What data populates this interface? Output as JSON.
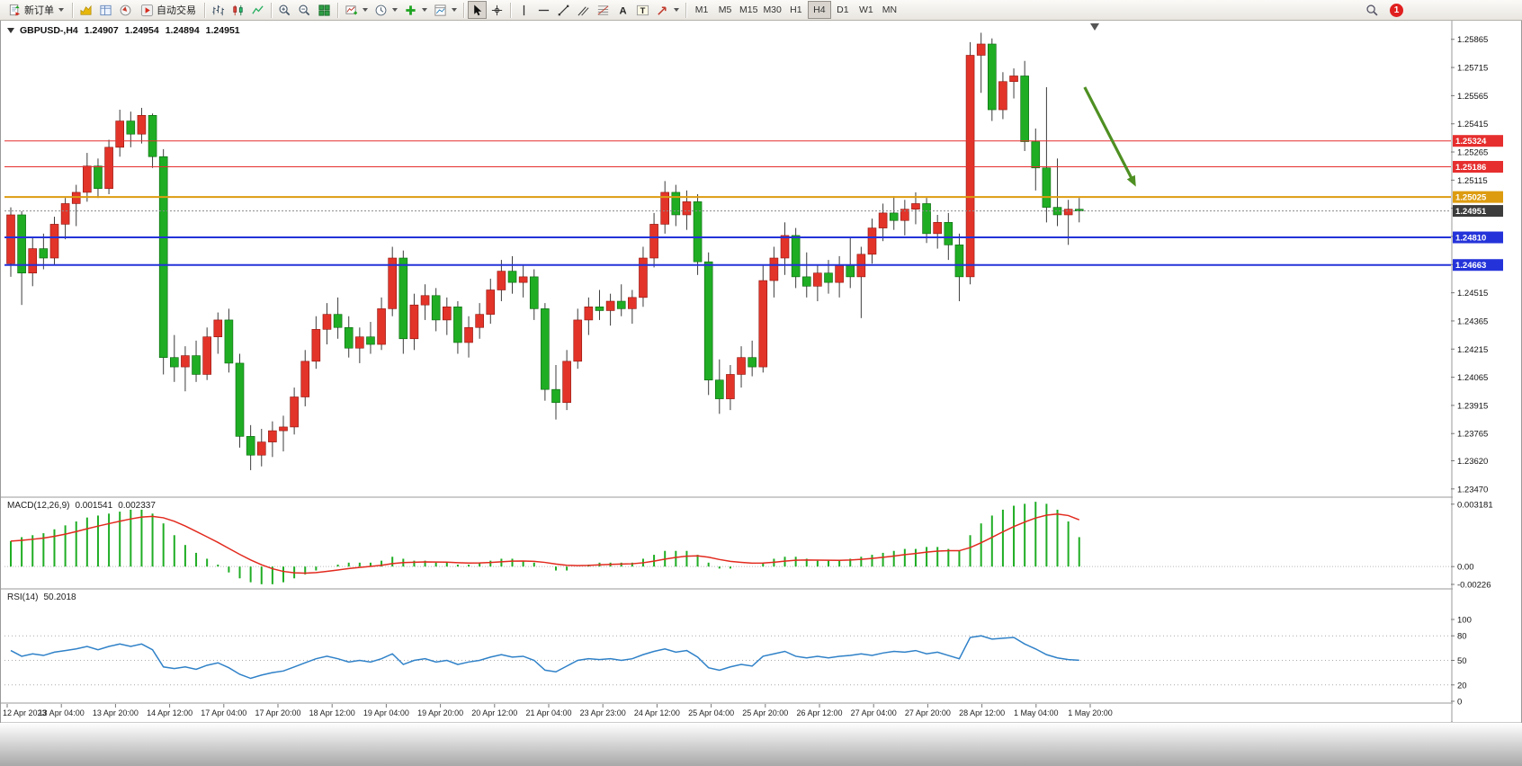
{
  "toolbar": {
    "new_order_label": "新订单",
    "autotrading_label": "自动交易",
    "timeframes": [
      "M1",
      "M5",
      "M15",
      "M30",
      "H1",
      "H4",
      "D1",
      "W1",
      "MN"
    ],
    "active_timeframe": "H4",
    "notification_count": "1"
  },
  "chart_data": {
    "type": "candlestick",
    "title": "GBPUSD-,H4",
    "ohlc": {
      "open": "1.24907",
      "high": "1.24954",
      "low": "1.24894",
      "close": "1.24951"
    },
    "bull_color": "#e3342a",
    "bear_color": "#1fad24",
    "wick_color": "#3c3c3c",
    "price_axis": {
      "min": 1.2345,
      "max": 1.2595,
      "labels": [
        "1.25865",
        "1.25715",
        "1.25565",
        "1.25415",
        "1.25265",
        "1.25115",
        "1.24965",
        "1.24815",
        "1.24665",
        "1.24515",
        "1.24365",
        "1.24215",
        "1.24065",
        "1.23915",
        "1.23765",
        "1.23620",
        "1.23470"
      ]
    },
    "hlines": [
      {
        "price": 1.25324,
        "label": "1.25324",
        "color": "#e62e2e",
        "width": 1
      },
      {
        "price": 1.25186,
        "label": "1.25186",
        "color": "#e62e2e",
        "width": 1
      },
      {
        "price": 1.25025,
        "label": "1.25025",
        "color": "#dd9c10",
        "width": 2
      },
      {
        "price": 1.2481,
        "label": "1.24810",
        "color": "#2433d9",
        "width": 2
      },
      {
        "price": 1.24663,
        "label": "1.24663",
        "color": "#2433d9",
        "width": 2
      }
    ],
    "bid_line": {
      "price": 1.24951,
      "label": "1.24951",
      "color": "#3c3c3c"
    },
    "arrow": {
      "bar_start": 98.5,
      "price_start": 1.2561,
      "bar_end": 103.2,
      "price_end": 1.2508,
      "color": "#4e8f22"
    },
    "candles": [
      [
        1.2467,
        1.2497,
        1.246,
        1.2493
      ],
      [
        1.2493,
        1.2495,
        1.2445,
        1.2462
      ],
      [
        1.2462,
        1.2481,
        1.2455,
        1.2475
      ],
      [
        1.2475,
        1.2483,
        1.2464,
        1.247
      ],
      [
        1.247,
        1.2492,
        1.2466,
        1.2488
      ],
      [
        1.2488,
        1.2502,
        1.248,
        1.2499
      ],
      [
        1.2499,
        1.2509,
        1.2487,
        1.2505
      ],
      [
        1.2505,
        1.2526,
        1.25,
        1.2519
      ],
      [
        1.2519,
        1.2523,
        1.2502,
        1.2507
      ],
      [
        1.2507,
        1.2533,
        1.2504,
        1.2529
      ],
      [
        1.2529,
        1.2549,
        1.2524,
        1.2543
      ],
      [
        1.2543,
        1.2548,
        1.2529,
        1.2536
      ],
      [
        1.2536,
        1.255,
        1.2531,
        1.2546
      ],
      [
        1.2546,
        1.2547,
        1.2518,
        1.2524
      ],
      [
        1.2524,
        1.2528,
        1.2408,
        1.2417
      ],
      [
        1.2417,
        1.2429,
        1.2404,
        1.2412
      ],
      [
        1.2412,
        1.2423,
        1.2399,
        1.2418
      ],
      [
        1.2418,
        1.2426,
        1.2404,
        1.2408
      ],
      [
        1.2408,
        1.2433,
        1.2405,
        1.2428
      ],
      [
        1.2428,
        1.2441,
        1.2419,
        1.2437
      ],
      [
        1.2437,
        1.2443,
        1.2409,
        1.2414
      ],
      [
        1.2414,
        1.2419,
        1.2369,
        1.2375
      ],
      [
        1.2375,
        1.2381,
        1.2357,
        1.2365
      ],
      [
        1.2365,
        1.2379,
        1.2359,
        1.2372
      ],
      [
        1.2372,
        1.2383,
        1.2364,
        1.2378
      ],
      [
        1.2378,
        1.2386,
        1.2367,
        1.238
      ],
      [
        1.238,
        1.2401,
        1.2376,
        1.2396
      ],
      [
        1.2396,
        1.2421,
        1.2391,
        1.2415
      ],
      [
        1.2415,
        1.2439,
        1.2411,
        1.2432
      ],
      [
        1.2432,
        1.2446,
        1.2424,
        1.244
      ],
      [
        1.244,
        1.2449,
        1.2427,
        1.2433
      ],
      [
        1.2433,
        1.2439,
        1.2417,
        1.2422
      ],
      [
        1.2422,
        1.2433,
        1.2414,
        1.2428
      ],
      [
        1.2428,
        1.2436,
        1.2419,
        1.2424
      ],
      [
        1.2424,
        1.2449,
        1.2421,
        1.2443
      ],
      [
        1.2443,
        1.2476,
        1.2439,
        1.247
      ],
      [
        1.247,
        1.2474,
        1.2419,
        1.2427
      ],
      [
        1.2427,
        1.2451,
        1.2421,
        1.2445
      ],
      [
        1.2445,
        1.2456,
        1.2437,
        1.245
      ],
      [
        1.245,
        1.2454,
        1.2431,
        1.2437
      ],
      [
        1.2437,
        1.2449,
        1.2429,
        1.2444
      ],
      [
        1.2444,
        1.2447,
        1.2419,
        1.2425
      ],
      [
        1.2425,
        1.2439,
        1.2417,
        1.2433
      ],
      [
        1.2433,
        1.2446,
        1.2427,
        1.244
      ],
      [
        1.244,
        1.2459,
        1.2435,
        1.2453
      ],
      [
        1.2453,
        1.2469,
        1.2447,
        1.2463
      ],
      [
        1.2463,
        1.2471,
        1.2451,
        1.2457
      ],
      [
        1.2457,
        1.2466,
        1.2449,
        1.246
      ],
      [
        1.246,
        1.2464,
        1.2437,
        1.2443
      ],
      [
        1.2443,
        1.2446,
        1.2394,
        1.24
      ],
      [
        1.24,
        1.2413,
        1.2384,
        1.2393
      ],
      [
        1.2393,
        1.2421,
        1.2389,
        1.2415
      ],
      [
        1.2415,
        1.2443,
        1.2411,
        1.2437
      ],
      [
        1.2437,
        1.2449,
        1.2429,
        1.2444
      ],
      [
        1.2444,
        1.2453,
        1.2437,
        1.2442
      ],
      [
        1.2442,
        1.2451,
        1.2434,
        1.2447
      ],
      [
        1.2447,
        1.2456,
        1.2439,
        1.2443
      ],
      [
        1.2443,
        1.2453,
        1.2435,
        1.2449
      ],
      [
        1.2449,
        1.2476,
        1.2444,
        1.247
      ],
      [
        1.247,
        1.2494,
        1.2465,
        1.2488
      ],
      [
        1.2488,
        1.2511,
        1.2483,
        1.2505
      ],
      [
        1.2505,
        1.2509,
        1.2487,
        1.2493
      ],
      [
        1.2493,
        1.2506,
        1.2485,
        1.25
      ],
      [
        1.25,
        1.2504,
        1.2461,
        1.2468
      ],
      [
        1.2468,
        1.2473,
        1.2397,
        1.2405
      ],
      [
        1.2405,
        1.2416,
        1.2387,
        1.2395
      ],
      [
        1.2395,
        1.2413,
        1.2389,
        1.2408
      ],
      [
        1.2408,
        1.2423,
        1.2401,
        1.2417
      ],
      [
        1.2417,
        1.2426,
        1.2407,
        1.2412
      ],
      [
        1.2412,
        1.2466,
        1.2409,
        1.2458
      ],
      [
        1.2458,
        1.2476,
        1.2449,
        1.247
      ],
      [
        1.247,
        1.2489,
        1.2461,
        1.2482
      ],
      [
        1.2482,
        1.2486,
        1.2454,
        1.246
      ],
      [
        1.246,
        1.2473,
        1.2449,
        1.2455
      ],
      [
        1.2455,
        1.2466,
        1.2447,
        1.2462
      ],
      [
        1.2462,
        1.2469,
        1.2451,
        1.2457
      ],
      [
        1.2457,
        1.2471,
        1.2449,
        1.2466
      ],
      [
        1.2466,
        1.2481,
        1.2454,
        1.246
      ],
      [
        1.246,
        1.2476,
        1.2438,
        1.2472
      ],
      [
        1.2472,
        1.2491,
        1.2467,
        1.2486
      ],
      [
        1.2486,
        1.2499,
        1.2479,
        1.2494
      ],
      [
        1.2494,
        1.2503,
        1.2485,
        1.249
      ],
      [
        1.249,
        1.2501,
        1.2482,
        1.2496
      ],
      [
        1.2496,
        1.2505,
        1.2488,
        1.2499
      ],
      [
        1.2499,
        1.2502,
        1.2478,
        1.2483
      ],
      [
        1.2483,
        1.2493,
        1.2475,
        1.2489
      ],
      [
        1.2489,
        1.2494,
        1.2469,
        1.2477
      ],
      [
        1.2477,
        1.2483,
        1.2447,
        1.246
      ],
      [
        1.246,
        1.2585,
        1.2456,
        1.2578
      ],
      [
        1.2578,
        1.259,
        1.2558,
        1.2584
      ],
      [
        1.2584,
        1.2587,
        1.2543,
        1.2549
      ],
      [
        1.2549,
        1.2569,
        1.2544,
        1.2564
      ],
      [
        1.2564,
        1.2571,
        1.2555,
        1.2567
      ],
      [
        1.2567,
        1.2575,
        1.2527,
        1.2532
      ],
      [
        1.2532,
        1.2539,
        1.2506,
        1.2518
      ],
      [
        1.2518,
        1.2561,
        1.2489,
        1.2497
      ],
      [
        1.2497,
        1.2523,
        1.2487,
        1.2493
      ],
      [
        1.2493,
        1.2501,
        1.2477,
        1.2496
      ],
      [
        1.2496,
        1.2502,
        1.2489,
        1.24951
      ]
    ],
    "time_axis": [
      "12 Apr 2023",
      "13 Apr 04:00",
      "13 Apr 20:00",
      "14 Apr 12:00",
      "17 Apr 04:00",
      "17 Apr 20:00",
      "18 Apr 12:00",
      "19 Apr 04:00",
      "19 Apr 20:00",
      "20 Apr 12:00",
      "21 Apr 04:00",
      "23 Apr 23:00",
      "24 Apr 12:00",
      "25 Apr 04:00",
      "25 Apr 20:00",
      "26 Apr 12:00",
      "27 Apr 04:00",
      "27 Apr 20:00",
      "28 Apr 12:00",
      "1 May 04:00",
      "1 May 20:00"
    ],
    "indicators": {
      "macd": {
        "label": "MACD(12,26,9)",
        "value_main": "0.001541",
        "value_signal": "0.002337",
        "axis_labels": [
          "0.003181",
          "0.00",
          "-0.00226"
        ],
        "scale_max": 0.0034,
        "scale_min": -0.001,
        "histogram_color": "#1fad24",
        "signal_color": "#e22a1e",
        "histogram": [
          0.0013,
          0.0015,
          0.0016,
          0.0017,
          0.0019,
          0.0021,
          0.0023,
          0.0025,
          0.0026,
          0.0027,
          0.0028,
          0.0029,
          0.0029,
          0.0027,
          0.0022,
          0.0016,
          0.0011,
          0.0007,
          0.0004,
          0.0001,
          -0.0003,
          -0.0006,
          -0.0008,
          -0.0009,
          -0.0009,
          -0.0008,
          -0.0006,
          -0.0004,
          -0.0002,
          0.0,
          0.0001,
          0.0002,
          0.0002,
          0.0002,
          0.0003,
          0.0005,
          0.0004,
          0.0003,
          0.0003,
          0.0002,
          0.0002,
          0.0001,
          0.0001,
          0.0002,
          0.0003,
          0.0004,
          0.0004,
          0.0003,
          0.0002,
          0.0,
          -0.0002,
          -0.0002,
          0.0,
          0.0001,
          0.0002,
          0.0002,
          0.0002,
          0.0002,
          0.0004,
          0.0006,
          0.0008,
          0.0008,
          0.0008,
          0.0006,
          0.0002,
          -0.0001,
          -0.0001,
          0.0,
          0.0,
          0.0002,
          0.0004,
          0.0005,
          0.0005,
          0.0004,
          0.0003,
          0.0003,
          0.0003,
          0.0004,
          0.0005,
          0.0006,
          0.0007,
          0.0008,
          0.0009,
          0.0009,
          0.001,
          0.001,
          0.0009,
          0.0008,
          0.0016,
          0.0022,
          0.0026,
          0.0029,
          0.0031,
          0.0032,
          0.0033,
          0.0032,
          0.0029,
          0.0023,
          0.0015
        ]
      },
      "rsi": {
        "label": "RSI(14)",
        "value": "50.2018",
        "color": "#2f81c8",
        "levels": [
          80,
          50,
          20
        ],
        "axis_labels": [
          "100",
          "80",
          "50",
          "20",
          "0"
        ],
        "values": [
          62,
          55,
          58,
          56,
          60,
          62,
          64,
          67,
          63,
          67,
          70,
          67,
          70,
          63,
          42,
          40,
          42,
          39,
          44,
          47,
          41,
          33,
          28,
          32,
          35,
          37,
          42,
          47,
          52,
          55,
          52,
          48,
          50,
          48,
          52,
          58,
          45,
          50,
          52,
          48,
          50,
          45,
          48,
          50,
          54,
          57,
          54,
          55,
          50,
          38,
          36,
          43,
          50,
          52,
          51,
          52,
          50,
          52,
          57,
          61,
          64,
          60,
          62,
          54,
          41,
          38,
          42,
          45,
          43,
          55,
          58,
          61,
          55,
          53,
          55,
          53,
          55,
          56,
          58,
          56,
          59,
          61,
          60,
          62,
          58,
          60,
          56,
          52,
          78,
          80,
          76,
          77,
          78,
          70,
          64,
          57,
          53,
          51,
          50.2
        ]
      }
    }
  }
}
